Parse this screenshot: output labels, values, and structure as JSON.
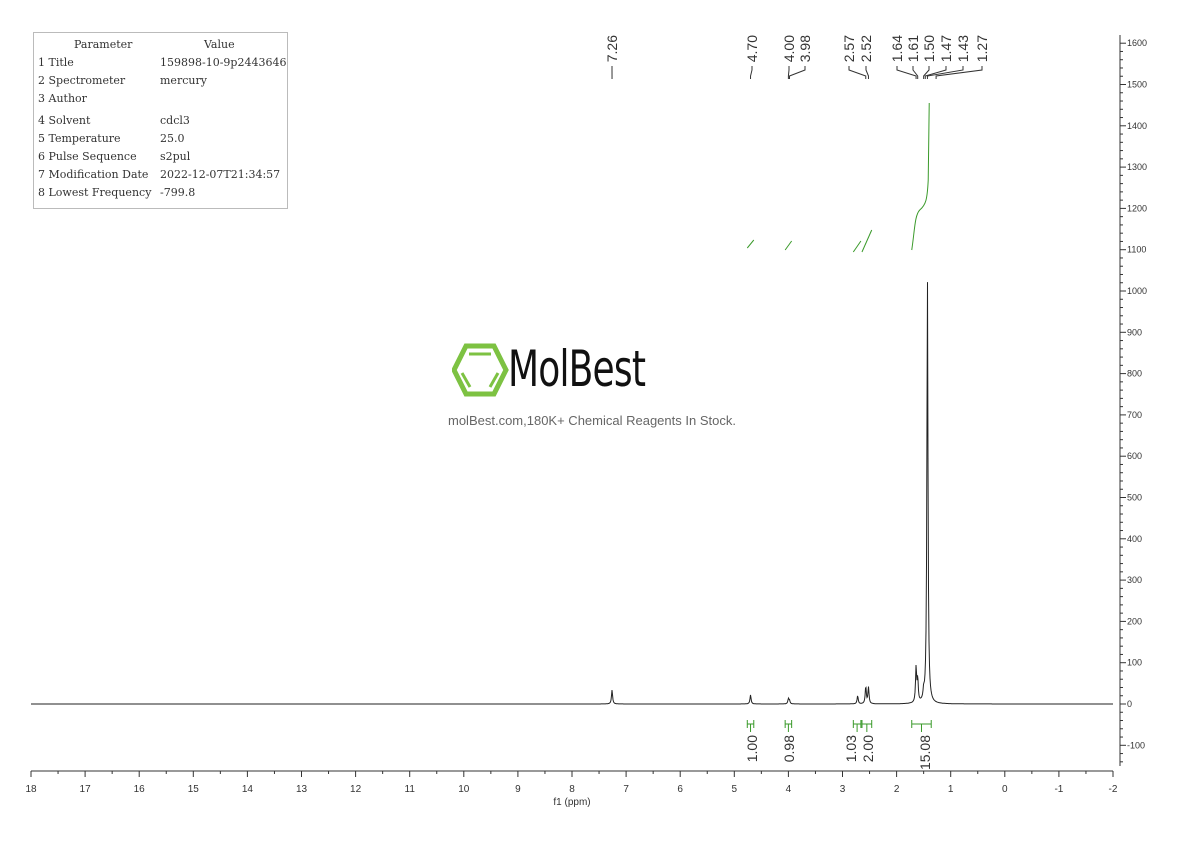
{
  "parameters": {
    "header": [
      "Parameter",
      "Value"
    ],
    "rows": [
      [
        "1 Title",
        "159898-10-9p2443646"
      ],
      [
        "2 Spectrometer",
        "mercury"
      ],
      [
        "3 Author",
        ""
      ],
      [
        "4 Solvent",
        "cdcl3"
      ],
      [
        "5 Temperature",
        "25.0"
      ],
      [
        "6 Pulse Sequence",
        "s2pul"
      ],
      [
        "7 Modification Date",
        "2022-12-07T21:34:57"
      ],
      [
        "8 Lowest Frequency",
        "-799.8"
      ]
    ]
  },
  "watermark": {
    "brand": "MolBest",
    "tagline": "molBest.com,180K+ Chemical Reagents In Stock.",
    "brand_color": "#7dc242"
  },
  "chart_data": {
    "type": "line",
    "xlabel": "f1 (ppm)",
    "ylabel": "",
    "xlim": [
      18,
      -2
    ],
    "ylim": [
      -150,
      1620
    ],
    "x_ticks": [
      18,
      17,
      16,
      15,
      14,
      13,
      12,
      11,
      10,
      9,
      8,
      7,
      6,
      5,
      4,
      3,
      2,
      1,
      0,
      -1,
      -2
    ],
    "y_ticks": [
      1600,
      1500,
      1400,
      1300,
      1200,
      1100,
      1000,
      900,
      800,
      700,
      600,
      500,
      400,
      300,
      200,
      100,
      0,
      -100
    ],
    "spectrum_color": "#222222",
    "integral_color": "#3a9a2a",
    "peaks": [
      {
        "shift": 7.26,
        "intensity": 34
      },
      {
        "shift": 4.7,
        "intensity": 22
      },
      {
        "shift": 4.0,
        "intensity": 12
      },
      {
        "shift": 3.98,
        "intensity": 8
      },
      {
        "shift": 2.72,
        "intensity": 20
      },
      {
        "shift": 2.57,
        "intensity": 42
      },
      {
        "shift": 2.52,
        "intensity": 40
      },
      {
        "shift": 1.64,
        "intensity": 85
      },
      {
        "shift": 1.61,
        "intensity": 55
      },
      {
        "shift": 1.5,
        "intensity": 20
      },
      {
        "shift": 1.43,
        "intensity": 1030
      }
    ],
    "peak_labels": [
      "7.26",
      "4.70",
      "4.00",
      "3.98",
      "2.57",
      "2.52",
      "1.64",
      "1.61",
      "1.50",
      "1.47",
      "1.43",
      "1.27"
    ],
    "integrals": [
      {
        "from": 4.76,
        "to": 4.64,
        "value": "1.00"
      },
      {
        "from": 4.06,
        "to": 3.94,
        "value": "0.98"
      },
      {
        "from": 2.8,
        "to": 2.66,
        "value": "1.03"
      },
      {
        "from": 2.64,
        "to": 2.46,
        "value": "2.00"
      },
      {
        "from": 1.72,
        "to": 1.36,
        "value": "15.08"
      }
    ]
  }
}
